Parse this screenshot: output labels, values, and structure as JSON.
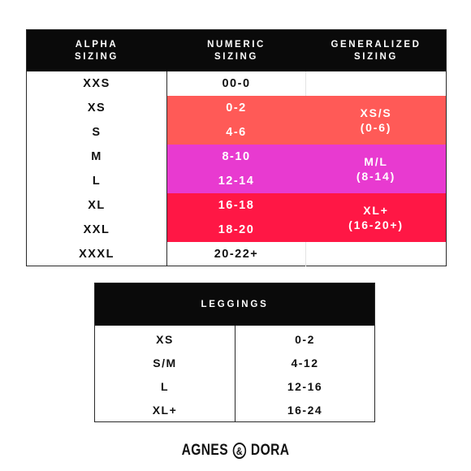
{
  "size_chart": {
    "headers": {
      "alpha": "ALPHA\nSIZING",
      "numeric": "NUMERIC\nSIZING",
      "generalized": "GENERALIZED\nSIZING"
    },
    "rows": [
      {
        "alpha": "XXS",
        "numeric": "00-0"
      },
      {
        "alpha": "XS",
        "numeric": "0-2"
      },
      {
        "alpha": "S",
        "numeric": "4-6"
      },
      {
        "alpha": "M",
        "numeric": "8-10"
      },
      {
        "alpha": "L",
        "numeric": "12-14"
      },
      {
        "alpha": "XL",
        "numeric": "16-18"
      },
      {
        "alpha": "XXL",
        "numeric": "18-20"
      },
      {
        "alpha": "XXXL",
        "numeric": "20-22+"
      }
    ],
    "generalized": [
      {
        "label": "XS/S\n(0-6)",
        "color": "#ff5a57"
      },
      {
        "label": "M/L\n(8-14)",
        "color": "#e83ad0"
      },
      {
        "label": "XL+\n(16-20+)",
        "color": "#ff1745"
      }
    ]
  },
  "leggings_chart": {
    "title": "LEGGINGS",
    "rows": [
      {
        "size": "XS",
        "range": "0-2"
      },
      {
        "size": "S/M",
        "range": "4-12"
      },
      {
        "size": "L",
        "range": "12-16"
      },
      {
        "size": "XL+",
        "range": "16-24"
      }
    ]
  },
  "brand": {
    "left": "AGNES",
    "amp": "&",
    "right": "DORA"
  }
}
